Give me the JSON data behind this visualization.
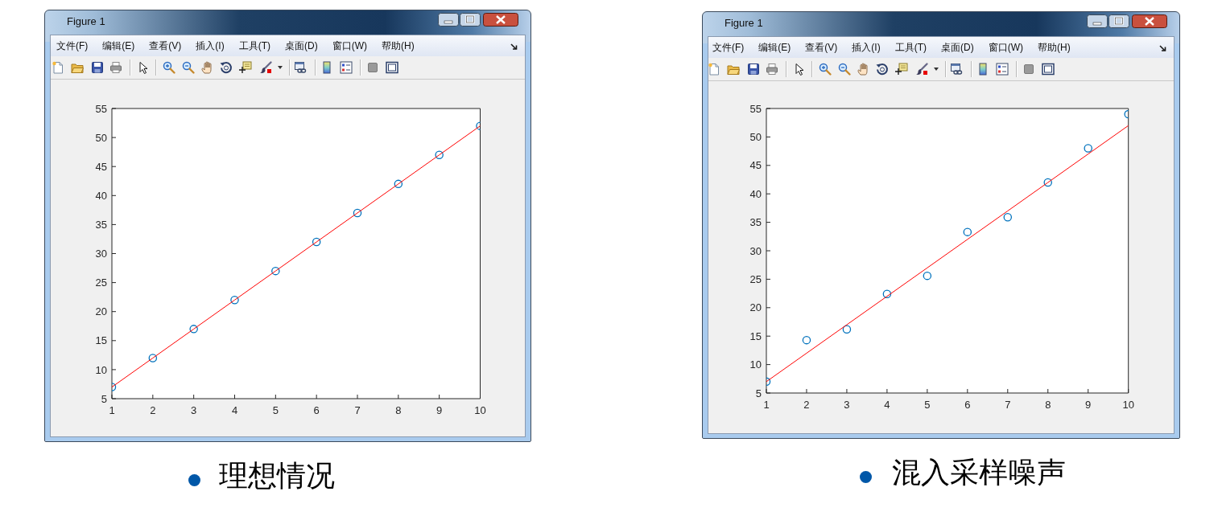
{
  "chart_data": [
    {
      "type": "scatter",
      "title": "理想情况",
      "annotations": [
        "Figure 1",
        "文件(F)",
        "编辑(E)",
        "查看(V)",
        "插入(I)",
        "工具(T)",
        "桌面(D)",
        "窗口(W)",
        "帮助(H)"
      ],
      "x": [
        1,
        2,
        3,
        4,
        5,
        6,
        7,
        8,
        9,
        10
      ],
      "series": [
        {
          "type": "scatter",
          "color": "#0072bd",
          "marker": "circle",
          "values": [
            7,
            12,
            17,
            22,
            27,
            32,
            37,
            42,
            47,
            52
          ]
        },
        {
          "type": "line",
          "color": "#ff0000",
          "values": [
            7,
            12,
            17,
            22,
            27,
            32,
            37,
            42,
            47,
            52
          ]
        }
      ],
      "xlim": [
        1,
        10
      ],
      "xticks": [
        1,
        2,
        3,
        4,
        5,
        6,
        7,
        8,
        9,
        10
      ],
      "ylim": [
        5,
        55
      ],
      "yticks": [
        5,
        10,
        15,
        20,
        25,
        30,
        35,
        40,
        45,
        50,
        55
      ]
    },
    {
      "type": "scatter",
      "title": "混入采样噪声",
      "annotations": [
        "Figure 1",
        "文件(F)",
        "编辑(E)",
        "查看(V)",
        "插入(I)",
        "工具(T)",
        "桌面(D)",
        "窗口(W)",
        "帮助(H)"
      ],
      "x": [
        1,
        2,
        3,
        4,
        5,
        6,
        7,
        8,
        9,
        10
      ],
      "series": [
        {
          "type": "scatter",
          "color": "#0072bd",
          "marker": "circle",
          "values": [
            7,
            14.3,
            16.2,
            22.4,
            25.6,
            33.3,
            35.9,
            42,
            48,
            54
          ]
        },
        {
          "type": "line",
          "color": "#ff0000",
          "values": [
            7,
            12,
            17,
            22,
            27,
            32,
            37,
            42,
            47,
            52
          ]
        }
      ],
      "xlim": [
        1,
        10
      ],
      "xticks": [
        1,
        2,
        3,
        4,
        5,
        6,
        7,
        8,
        9,
        10
      ],
      "ylim": [
        5,
        55
      ],
      "yticks": [
        5,
        10,
        15,
        20,
        25,
        30,
        35,
        40,
        45,
        50,
        55
      ]
    }
  ]
}
